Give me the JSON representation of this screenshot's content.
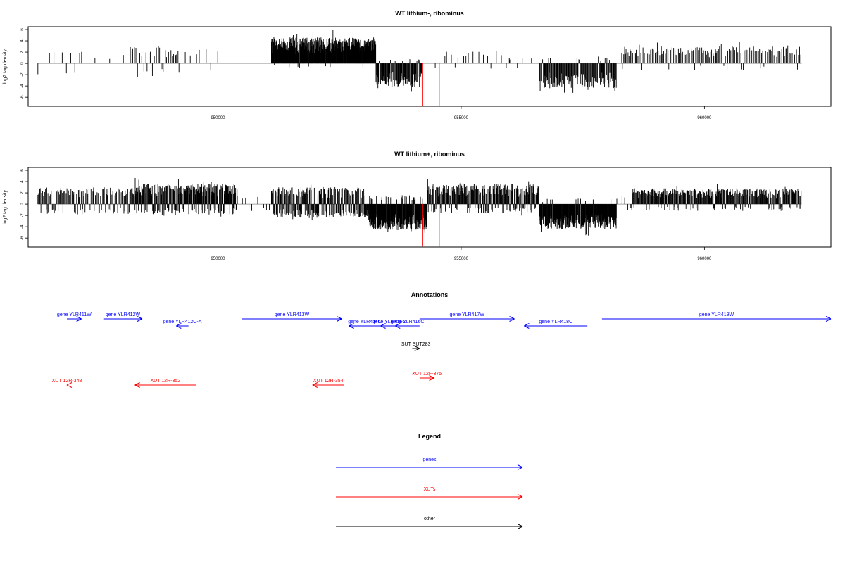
{
  "chart_data": [
    {
      "type": "bar",
      "title": "WT lithium-, ribominus",
      "ylabel": "log2 tag density",
      "xlabel": "",
      "xlim": [
        946100,
        962600
      ],
      "ylim": [
        -7.6,
        6.5
      ],
      "yticks": [
        -6,
        -4,
        -2,
        0,
        2,
        4,
        6
      ],
      "xticks": [
        950000,
        955000,
        960000
      ],
      "seed": 7,
      "segments": [
        {
          "start": 946300,
          "end": 946800,
          "density": 0.006,
          "pos": 0.2,
          "ampPos": 2.0,
          "ampNeg": 2.0
        },
        {
          "start": 946800,
          "end": 947200,
          "density": 0.015,
          "pos": 0.6,
          "ampPos": 2.5,
          "ampNeg": 2.5
        },
        {
          "start": 947200,
          "end": 948200,
          "density": 0.004,
          "pos": 0.8,
          "ampPos": 1.5,
          "ampNeg": 1.5
        },
        {
          "start": 948200,
          "end": 949200,
          "density": 0.03,
          "pos": 0.75,
          "ampPos": 3.0,
          "ampNeg": 2.5
        },
        {
          "start": 949200,
          "end": 950000,
          "density": 0.01,
          "pos": 0.6,
          "ampPos": 2.5,
          "ampNeg": 2.0
        },
        {
          "start": 951100,
          "end": 953250,
          "density": 0.16,
          "pos": 0.97,
          "ampPos": 4.6,
          "ampNeg": 1.0
        },
        {
          "start": 953250,
          "end": 954200,
          "density": 0.1,
          "pos": 0.06,
          "ampPos": 0.8,
          "ampNeg": 4.4
        },
        {
          "start": 954200,
          "end": 954700,
          "density": 0.006,
          "pos": 0.5,
          "ampPos": 1.5,
          "ampNeg": 1.0
        },
        {
          "start": 954700,
          "end": 956000,
          "density": 0.012,
          "pos": 0.9,
          "ampPos": 2.2,
          "ampNeg": 1.0
        },
        {
          "start": 956000,
          "end": 956600,
          "density": 0.005,
          "pos": 0.8,
          "ampPos": 1.0,
          "ampNeg": 1.0
        },
        {
          "start": 956600,
          "end": 958200,
          "density": 0.08,
          "pos": 0.08,
          "ampPos": 1.0,
          "ampNeg": 4.4
        },
        {
          "start": 958300,
          "end": 962000,
          "density": 0.04,
          "pos": 0.93,
          "ampPos": 3.0,
          "ampNeg": 1.2
        }
      ],
      "highlight_x": [
        954210,
        954550
      ],
      "highlight_y": -7.5
    },
    {
      "type": "bar",
      "title": "WT lithium+, ribominus",
      "ylabel": "log2 tag density",
      "xlabel": "",
      "xlim": [
        946100,
        962600
      ],
      "ylim": [
        -7.6,
        6.5
      ],
      "yticks": [
        -6,
        -4,
        -2,
        0,
        2,
        4,
        6
      ],
      "xticks": [
        950000,
        955000,
        960000
      ],
      "seed": 21,
      "segments": [
        {
          "start": 946300,
          "end": 948300,
          "density": 0.06,
          "pos": 0.72,
          "ampPos": 3.0,
          "ampNeg": 1.8
        },
        {
          "start": 948300,
          "end": 950400,
          "density": 0.13,
          "pos": 0.72,
          "ampPos": 3.6,
          "ampNeg": 1.8
        },
        {
          "start": 950400,
          "end": 951100,
          "density": 0.012,
          "pos": 0.5,
          "ampPos": 1.6,
          "ampNeg": 1.4
        },
        {
          "start": 951100,
          "end": 953100,
          "density": 0.12,
          "pos": 0.5,
          "ampPos": 3.0,
          "ampNeg": 2.4
        },
        {
          "start": 953100,
          "end": 954300,
          "density": 0.18,
          "pos": 0.12,
          "ampPos": 1.6,
          "ampNeg": 4.6
        },
        {
          "start": 954300,
          "end": 956600,
          "density": 0.11,
          "pos": 0.78,
          "ampPos": 3.6,
          "ampNeg": 1.6
        },
        {
          "start": 956600,
          "end": 958200,
          "density": 0.15,
          "pos": 0.06,
          "ampPos": 1.0,
          "ampNeg": 4.4
        },
        {
          "start": 958200,
          "end": 958500,
          "density": 0.01,
          "pos": 0.6,
          "ampPos": 1.5,
          "ampNeg": 1.0
        },
        {
          "start": 958500,
          "end": 962000,
          "density": 0.09,
          "pos": 0.82,
          "ampPos": 2.8,
          "ampNeg": 1.2
        }
      ],
      "highlight_x": [
        954210,
        954550
      ],
      "highlight_y": -7.5
    }
  ],
  "annotations": {
    "title": "Annotations",
    "xlim": [
      946100,
      962600
    ],
    "items": [
      {
        "label": "gene YLR411W",
        "start": 946400,
        "end": 947050,
        "row": 0,
        "dir": "right",
        "color": "#0000ff"
      },
      {
        "label": "gene YLR412W",
        "start": 947500,
        "end": 948300,
        "row": 0,
        "dir": "right",
        "color": "#0000ff"
      },
      {
        "label": "gene YLR412C-A",
        "start": 949000,
        "end": 949250,
        "row": 1,
        "dir": "left",
        "color": "#0000ff"
      },
      {
        "label": "gene YLR413W",
        "start": 950350,
        "end": 952400,
        "row": 0,
        "dir": "right",
        "color": "#0000ff"
      },
      {
        "label": "gene YLR414C",
        "start": 952550,
        "end": 953200,
        "row": 1,
        "dir": "left",
        "color": "#0000ff"
      },
      {
        "label": "gene YLR415C",
        "start": 953200,
        "end": 953550,
        "row": 1,
        "dir": "left",
        "color": "#0000ff"
      },
      {
        "label": "gene YLR416C",
        "start": 953500,
        "end": 954000,
        "row": 1,
        "dir": "left",
        "color": "#0000ff"
      },
      {
        "label": "gene YLR417W",
        "start": 954000,
        "end": 955950,
        "row": 0,
        "dir": "right",
        "color": "#0000ff"
      },
      {
        "label": "gene YLR418C",
        "start": 956150,
        "end": 957450,
        "row": 1,
        "dir": "left",
        "color": "#0000ff"
      },
      {
        "label": "gene YLR419W",
        "start": 957750,
        "end": 962600,
        "row": 0,
        "dir": "right",
        "color": "#0000ff"
      },
      {
        "label": "SUT SUT283",
        "start": 953850,
        "end": 954000,
        "row": 2,
        "dir": "right",
        "color": "#000000"
      },
      {
        "label": "XUT 12F-375",
        "start": 954000,
        "end": 954300,
        "row": 4,
        "dir": "right",
        "color": "#ff0000"
      },
      {
        "label": "XUT 12R-348",
        "start": 946400,
        "end": 946750,
        "row": 5,
        "dir": "left",
        "color": "#ff0000"
      },
      {
        "label": "XUT 12R-352",
        "start": 948150,
        "end": 949400,
        "row": 5,
        "dir": "left",
        "color": "#ff0000"
      },
      {
        "label": "XUT 12R-354",
        "start": 951800,
        "end": 952450,
        "row": 5,
        "dir": "left",
        "color": "#ff0000"
      }
    ]
  },
  "legend": {
    "title": "Legend",
    "items": [
      {
        "label": "genes",
        "color": "#0000ff"
      },
      {
        "label": "XUTs",
        "color": "#ff0000"
      },
      {
        "label": "other",
        "color": "#000000"
      }
    ]
  }
}
